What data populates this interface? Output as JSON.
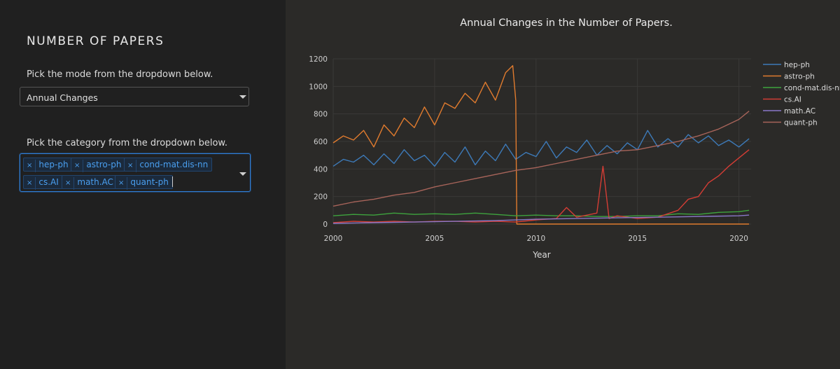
{
  "sidebar": {
    "title": "NUMBER OF PAPERS",
    "mode_prompt": "Pick the mode from the dropdown below.",
    "mode_value": "Annual Changes",
    "category_prompt": "Pick the category from the dropdown below.",
    "categories": [
      "hep-ph",
      "astro-ph",
      "cond-mat.dis-nn",
      "cs.AI",
      "math.AC",
      "quant-ph"
    ],
    "remove_glyph": "×"
  },
  "colors": {
    "tag_text": "#4a9ff0",
    "focus_border": "#2f7dd6"
  },
  "chart_data": {
    "type": "line",
    "title": "Annual Changes in the Number of Papers.",
    "xlabel": "Year",
    "ylabel": "",
    "xlim": [
      2000,
      2020.6
    ],
    "ylim": [
      0,
      1200
    ],
    "xticks": [
      2000,
      2005,
      2010,
      2015,
      2020
    ],
    "yticks": [
      0,
      200,
      400,
      600,
      800,
      1000,
      1200
    ],
    "grid": true,
    "legend_position": "right",
    "series": [
      {
        "name": "hep-ph",
        "color": "#3d7ab8",
        "x": [
          2000,
          2000.5,
          2001,
          2001.5,
          2002,
          2002.5,
          2003,
          2003.5,
          2004,
          2004.5,
          2005,
          2005.5,
          2006,
          2006.5,
          2007,
          2007.5,
          2008,
          2008.5,
          2009,
          2009.5,
          2010,
          2010.5,
          2011,
          2011.5,
          2012,
          2012.5,
          2013,
          2013.5,
          2014,
          2014.5,
          2015,
          2015.5,
          2016,
          2016.5,
          2017,
          2017.5,
          2018,
          2018.5,
          2019,
          2019.5,
          2020,
          2020.5
        ],
        "y": [
          420,
          470,
          450,
          500,
          430,
          510,
          440,
          540,
          460,
          500,
          420,
          520,
          450,
          560,
          430,
          530,
          460,
          580,
          470,
          520,
          490,
          600,
          480,
          560,
          520,
          610,
          500,
          570,
          510,
          590,
          540,
          680,
          560,
          620,
          560,
          650,
          590,
          640,
          570,
          610,
          560,
          620
        ]
      },
      {
        "name": "astro-ph",
        "color": "#e07b2e",
        "x": [
          2000,
          2000.5,
          2001,
          2001.5,
          2002,
          2002.5,
          2003,
          2003.5,
          2004,
          2004.5,
          2005,
          2005.5,
          2006,
          2006.5,
          2007,
          2007.5,
          2008,
          2008.5,
          2008.85,
          2009,
          2009.05,
          2010,
          2012,
          2014,
          2016,
          2018,
          2020,
          2020.5
        ],
        "y": [
          590,
          640,
          610,
          680,
          560,
          720,
          640,
          770,
          700,
          850,
          720,
          880,
          840,
          950,
          880,
          1030,
          900,
          1100,
          1150,
          900,
          0,
          0,
          0,
          0,
          0,
          0,
          0,
          0
        ]
      },
      {
        "name": "cond-mat.dis-nn",
        "color": "#3ea33e",
        "x": [
          2000,
          2001,
          2002,
          2003,
          2004,
          2005,
          2006,
          2007,
          2008,
          2009,
          2010,
          2011,
          2012,
          2013,
          2014,
          2015,
          2016,
          2017,
          2018,
          2019,
          2020,
          2020.5
        ],
        "y": [
          60,
          70,
          65,
          80,
          70,
          75,
          70,
          80,
          70,
          60,
          65,
          60,
          60,
          55,
          55,
          60,
          60,
          75,
          70,
          85,
          90,
          100
        ]
      },
      {
        "name": "cs.AI",
        "color": "#d43d35",
        "x": [
          2000,
          2001,
          2002,
          2003,
          2004,
          2005,
          2006,
          2007,
          2008,
          2009,
          2010,
          2011,
          2011.5,
          2012,
          2013,
          2013.3,
          2013.6,
          2014,
          2015,
          2016,
          2017,
          2017.5,
          2018,
          2018.5,
          2019,
          2019.5,
          2020,
          2020.5
        ],
        "y": [
          10,
          20,
          15,
          20,
          15,
          20,
          20,
          15,
          20,
          15,
          30,
          40,
          120,
          50,
          80,
          420,
          40,
          60,
          40,
          50,
          100,
          180,
          200,
          300,
          350,
          420,
          480,
          540
        ]
      },
      {
        "name": "math.AC",
        "color": "#8a78c9",
        "x": [
          2000,
          2002,
          2004,
          2006,
          2008,
          2010,
          2012,
          2014,
          2016,
          2018,
          2020,
          2020.5
        ],
        "y": [
          5,
          10,
          15,
          20,
          25,
          35,
          40,
          45,
          50,
          55,
          60,
          65
        ]
      },
      {
        "name": "quant-ph",
        "color": "#a8645a",
        "x": [
          2000,
          2001,
          2002,
          2003,
          2004,
          2005,
          2006,
          2007,
          2008,
          2009,
          2010,
          2011,
          2012,
          2013,
          2014,
          2015,
          2016,
          2017,
          2018,
          2019,
          2020,
          2020.5
        ],
        "y": [
          130,
          160,
          180,
          210,
          230,
          270,
          300,
          330,
          360,
          390,
          410,
          440,
          470,
          500,
          530,
          540,
          570,
          600,
          640,
          690,
          760,
          820
        ]
      }
    ]
  }
}
